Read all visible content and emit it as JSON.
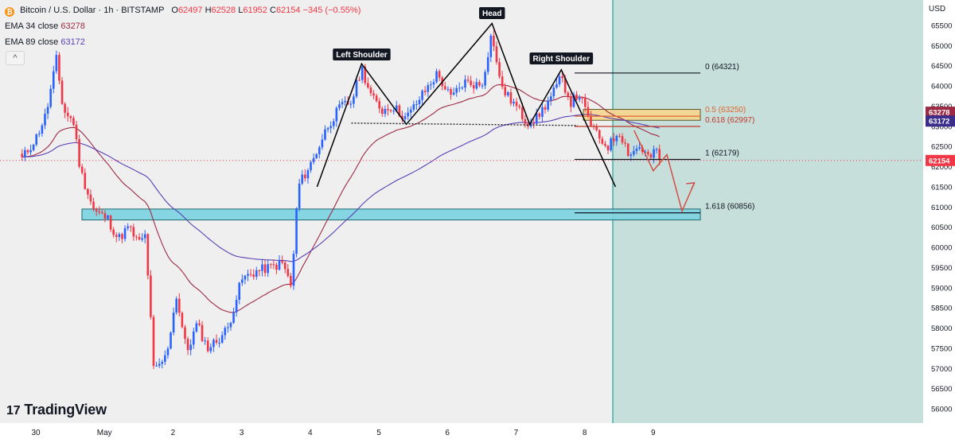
{
  "header": {
    "symbol": "Bitcoin / U.S. Dollar · 1h · BITSTAMP",
    "open_label": "O",
    "open": "62497",
    "high_label": "H",
    "high": "62528",
    "low_label": "L",
    "low": "61952",
    "close_label": "C",
    "close": "62154",
    "change": "−345 (−0.55%)",
    "ema34_label": "EMA 34 close",
    "ema34_value": "63278",
    "ema89_label": "EMA 89 close",
    "ema89_value": "63172",
    "collapse_glyph": "^",
    "coin_glyph": "₿"
  },
  "logo": {
    "mark": "⁠17",
    "text": "TradingView"
  },
  "currency": "USD",
  "colors": {
    "up": "#2962ff",
    "down": "#f23645",
    "ema34": "#9c2a45",
    "ema89": "#5b3fb5",
    "support_zone": "#7fd3e0",
    "resistance_zone": "#f6d58e",
    "future_area": "#c6dfda",
    "price_tag": "#f23645",
    "ema34_tag": "#9c2a45",
    "ema89_tag": "#3a2d8c"
  },
  "price_axis": {
    "ticks": [
      "65500",
      "65000",
      "64500",
      "64000",
      "63500",
      "63000",
      "62500",
      "62000",
      "61500",
      "61000",
      "60500",
      "60000",
      "59500",
      "59000",
      "58500",
      "58000",
      "57500",
      "57000",
      "56500",
      "56000"
    ],
    "price_tag": "62154",
    "ema34_tag": "63278",
    "ema89_tag": "63172"
  },
  "time_axis": {
    "ticks": [
      "30",
      "May",
      "2",
      "3",
      "4",
      "5",
      "6",
      "7",
      "8",
      "9"
    ]
  },
  "pattern_labels": {
    "left_shoulder": "Left Shoulder",
    "head": "Head",
    "right_shoulder": "Right Shoulder"
  },
  "fib_levels": [
    {
      "label": "0 (64321)",
      "price": 64321,
      "color": "#131722"
    },
    {
      "label": "0.5 (63250)",
      "price": 63250,
      "color": "#e0662f"
    },
    {
      "label": "0.618 (62997)",
      "price": 62997,
      "color": "#c0392b"
    },
    {
      "label": "1 (62179)",
      "price": 62179,
      "color": "#131722"
    },
    {
      "label": "1.618 (60856)",
      "price": 60856,
      "color": "#131722"
    }
  ],
  "chart_data": {
    "type": "candlestick",
    "title": "Bitcoin / U.S. Dollar · 1h · BITSTAMP",
    "timeframe": "1h",
    "ylim": [
      55700,
      65800
    ],
    "pattern": "head and shoulders",
    "pivots": [
      {
        "name": "Left Shoulder",
        "day": 4.75,
        "price": 64550
      },
      {
        "name": "Head",
        "day": 6.65,
        "price": 65550
      },
      {
        "name": "Right Shoulder",
        "day": 7.66,
        "price": 64400
      }
    ],
    "neckline": {
      "from": {
        "day": 4.6,
        "price": 63080
      },
      "to": {
        "day": 7.9,
        "price": 63020
      }
    },
    "support_zone": [
      60680,
      60950
    ],
    "resistance_zone": [
      63150,
      63420
    ],
    "anchors": [
      {
        "day": -0.2,
        "price": 62200
      },
      {
        "day": 0.0,
        "price": 62700
      },
      {
        "day": 0.15,
        "price": 63300
      },
      {
        "day": 0.3,
        "price": 64650
      },
      {
        "day": 0.4,
        "price": 63400
      },
      {
        "day": 0.55,
        "price": 63100
      },
      {
        "day": 0.65,
        "price": 61900
      },
      {
        "day": 0.85,
        "price": 60900
      },
      {
        "day": 1.05,
        "price": 60700
      },
      {
        "day": 1.2,
        "price": 60200
      },
      {
        "day": 1.35,
        "price": 60500
      },
      {
        "day": 1.5,
        "price": 60100
      },
      {
        "day": 1.6,
        "price": 60300
      },
      {
        "day": 1.72,
        "price": 56900
      },
      {
        "day": 1.9,
        "price": 57300
      },
      {
        "day": 2.05,
        "price": 58800
      },
      {
        "day": 2.2,
        "price": 57400
      },
      {
        "day": 2.35,
        "price": 58100
      },
      {
        "day": 2.5,
        "price": 57500
      },
      {
        "day": 2.65,
        "price": 57700
      },
      {
        "day": 2.8,
        "price": 58000
      },
      {
        "day": 3.0,
        "price": 59200
      },
      {
        "day": 3.2,
        "price": 59400
      },
      {
        "day": 3.4,
        "price": 59500
      },
      {
        "day": 3.6,
        "price": 59600
      },
      {
        "day": 3.73,
        "price": 59000
      },
      {
        "day": 3.82,
        "price": 61500
      },
      {
        "day": 4.05,
        "price": 62200
      },
      {
        "day": 4.25,
        "price": 63000
      },
      {
        "day": 4.45,
        "price": 63500
      },
      {
        "day": 4.6,
        "price": 63600
      },
      {
        "day": 4.75,
        "price": 64450
      },
      {
        "day": 4.9,
        "price": 63700
      },
      {
        "day": 5.05,
        "price": 63400
      },
      {
        "day": 5.2,
        "price": 63500
      },
      {
        "day": 5.4,
        "price": 63200
      },
      {
        "day": 5.6,
        "price": 63700
      },
      {
        "day": 5.85,
        "price": 64300
      },
      {
        "day": 6.05,
        "price": 63700
      },
      {
        "day": 6.25,
        "price": 64100
      },
      {
        "day": 6.5,
        "price": 64000
      },
      {
        "day": 6.65,
        "price": 65350
      },
      {
        "day": 6.75,
        "price": 64200
      },
      {
        "day": 6.85,
        "price": 63800
      },
      {
        "day": 7.0,
        "price": 63500
      },
      {
        "day": 7.15,
        "price": 63100
      },
      {
        "day": 7.3,
        "price": 63200
      },
      {
        "day": 7.5,
        "price": 63700
      },
      {
        "day": 7.66,
        "price": 64200
      },
      {
        "day": 7.8,
        "price": 63600
      },
      {
        "day": 7.92,
        "price": 63800
      },
      {
        "day": 8.05,
        "price": 63200
      },
      {
        "day": 8.2,
        "price": 62700
      },
      {
        "day": 8.35,
        "price": 62500
      },
      {
        "day": 8.5,
        "price": 62900
      },
      {
        "day": 8.65,
        "price": 62300
      },
      {
        "day": 8.8,
        "price": 62500
      },
      {
        "day": 8.95,
        "price": 62200
      },
      {
        "day": 9.05,
        "price": 62400
      },
      {
        "day": 9.12,
        "price": 62154
      }
    ]
  }
}
